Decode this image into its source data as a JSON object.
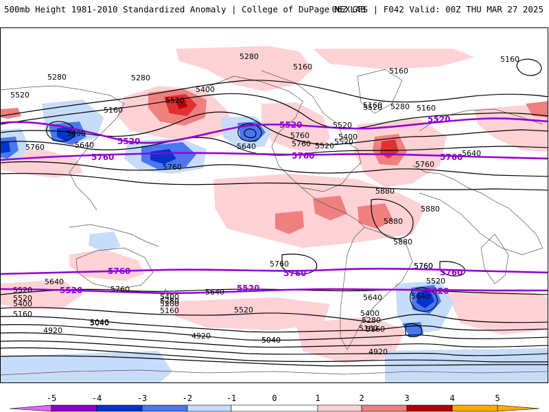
{
  "header": {
    "left": "500mb Height 1981-2010 Standardized Anomaly | College of DuPage NEXLAB",
    "right": "06Z GFS | F042 Valid: 00Z THU MAR 27 2025"
  },
  "colors": {
    "neg5": "#e066ff",
    "neg4": "#8b00c8",
    "neg3": "#0033cc",
    "neg2": "#4a78f0",
    "neg1": "#c6dcfa",
    "pos1": "#ffd2d6",
    "pos2": "#f08080",
    "pos3": "#e03030",
    "pos4": "#b00000",
    "pos5": "#ffaa00",
    "contour": "#000000",
    "purple": "#9400d3"
  },
  "colorbar": {
    "ticks": [
      "-5",
      "-4",
      "-3",
      "-2",
      "-1",
      "0",
      "1",
      "2",
      "3",
      "4",
      "5"
    ]
  },
  "contour_labels": [
    "5280",
    "5160",
    "5160",
    "5160",
    "5520",
    "5280",
    "5280",
    "5400",
    "5520",
    "5160",
    "5400",
    "5640",
    "5760",
    "5520",
    "5520",
    "5760",
    "5640",
    "5760",
    "5760",
    "5520",
    "5400",
    "5520",
    "5160",
    "5280",
    "5160",
    "5640",
    "5760",
    "5880",
    "5880",
    "5880",
    "5880",
    "5760",
    "5760",
    "5640",
    "5520",
    "5520",
    "5400",
    "5280",
    "5160",
    "5040",
    "4920",
    "5760",
    "5640",
    "5400",
    "5280",
    "5160",
    "5520",
    "5640",
    "5400",
    "5280",
    "5160",
    "5040",
    "4920",
    "4920",
    "5760",
    "5520",
    "5640",
    "5040",
    "5040",
    "5160"
  ],
  "purple_labels": [
    "5520",
    "5520",
    "5520",
    "5760",
    "5760",
    "5760",
    "5760",
    "5760",
    "5760",
    "5520",
    "5520",
    "5520",
    "5520"
  ]
}
